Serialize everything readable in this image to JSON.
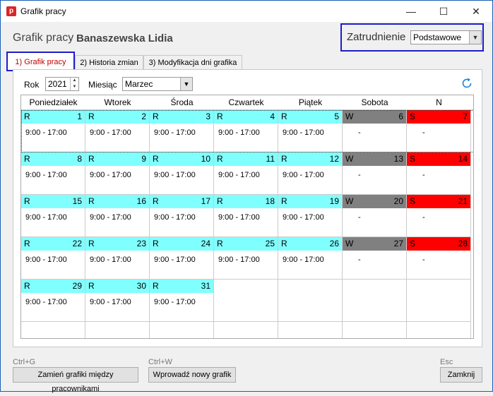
{
  "window": {
    "icon_letter": "p",
    "title": "Grafik pracy",
    "minimize": "—",
    "maximize": "☐",
    "close": "✕"
  },
  "header": {
    "title": "Grafik pracy",
    "employee_name": "Banaszewska Lidia"
  },
  "employment": {
    "label": "Zatrudnienie",
    "selected": "Podstawowe"
  },
  "tabs": [
    {
      "label": "1) Grafik pracy",
      "active": true
    },
    {
      "label": "2) Historia zmian",
      "active": false
    },
    {
      "label": "3) Modyfikacja dni grafika",
      "active": false
    }
  ],
  "filters": {
    "year_label": "Rok",
    "year": "2021",
    "month_label": "Miesiąc",
    "month": "Marzec"
  },
  "weekdays": [
    "Poniedziałek",
    "Wtorek",
    "Środa",
    "Czwartek",
    "Piątek",
    "Sobota",
    "N"
  ],
  "weeks": [
    [
      {
        "code": "R",
        "day": "1",
        "hours": "9:00 - 17:00"
      },
      {
        "code": "R",
        "day": "2",
        "hours": "9:00 - 17:00"
      },
      {
        "code": "R",
        "day": "3",
        "hours": "9:00 - 17:00"
      },
      {
        "code": "R",
        "day": "4",
        "hours": "9:00 - 17:00"
      },
      {
        "code": "R",
        "day": "5",
        "hours": "9:00 - 17:00"
      },
      {
        "code": "W",
        "day": "6",
        "hours": "-"
      },
      {
        "code": "S",
        "day": "7",
        "hours": "-"
      }
    ],
    [
      {
        "code": "R",
        "day": "8",
        "hours": "9:00 - 17:00"
      },
      {
        "code": "R",
        "day": "9",
        "hours": "9:00 - 17:00"
      },
      {
        "code": "R",
        "day": "10",
        "hours": "9:00 - 17:00"
      },
      {
        "code": "R",
        "day": "11",
        "hours": "9:00 - 17:00"
      },
      {
        "code": "R",
        "day": "12",
        "hours": "9:00 - 17:00"
      },
      {
        "code": "W",
        "day": "13",
        "hours": "-"
      },
      {
        "code": "S",
        "day": "14",
        "hours": "-"
      }
    ],
    [
      {
        "code": "R",
        "day": "15",
        "hours": "9:00 - 17:00"
      },
      {
        "code": "R",
        "day": "16",
        "hours": "9:00 - 17:00"
      },
      {
        "code": "R",
        "day": "17",
        "hours": "9:00 - 17:00"
      },
      {
        "code": "R",
        "day": "18",
        "hours": "9:00 - 17:00"
      },
      {
        "code": "R",
        "day": "19",
        "hours": "9:00 - 17:00"
      },
      {
        "code": "W",
        "day": "20",
        "hours": "-"
      },
      {
        "code": "S",
        "day": "21",
        "hours": "-"
      }
    ],
    [
      {
        "code": "R",
        "day": "22",
        "hours": "9:00 - 17:00"
      },
      {
        "code": "R",
        "day": "23",
        "hours": "9:00 - 17:00"
      },
      {
        "code": "R",
        "day": "24",
        "hours": "9:00 - 17:00"
      },
      {
        "code": "R",
        "day": "25",
        "hours": "9:00 - 17:00"
      },
      {
        "code": "R",
        "day": "26",
        "hours": "9:00 - 17:00"
      },
      {
        "code": "W",
        "day": "27",
        "hours": "-"
      },
      {
        "code": "S",
        "day": "28",
        "hours": "-"
      }
    ],
    [
      {
        "code": "R",
        "day": "29",
        "hours": "9:00 - 17:00"
      },
      {
        "code": "R",
        "day": "30",
        "hours": "9:00 - 17:00"
      },
      {
        "code": "R",
        "day": "31",
        "hours": "9:00 - 17:00"
      },
      null,
      null,
      null,
      null
    ],
    [
      null,
      null,
      null,
      null,
      null,
      null,
      null
    ]
  ],
  "legend_colors": {
    "R": "#80ffff",
    "W": "#808080",
    "S": "#ff0000"
  },
  "footer": {
    "swap_shortcut": "Ctrl+G",
    "swap_label": "Zamień grafiki między pracownikami",
    "new_shortcut": "Ctrl+W",
    "new_label": "Wprowadź nowy grafik",
    "close_shortcut": "Esc",
    "close_label": "Zamknij"
  },
  "icons": {
    "refresh": "refresh-icon",
    "app": "app-icon"
  }
}
